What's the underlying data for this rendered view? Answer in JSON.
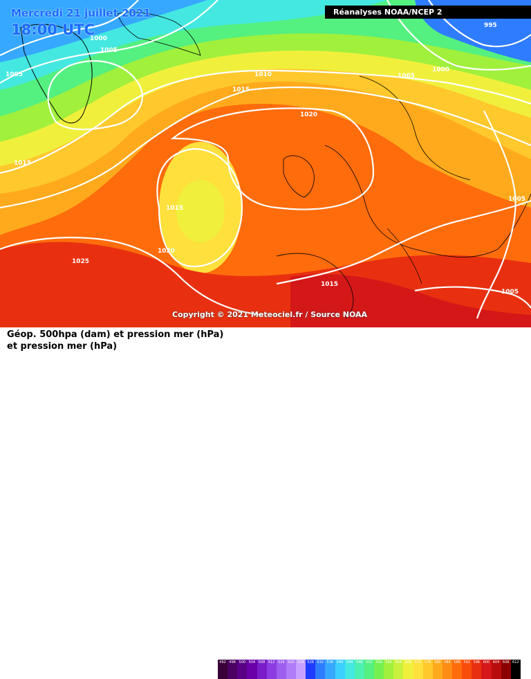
{
  "header": {
    "date": "Mercredi 21 juillet 2021",
    "time": "18:00 UTC",
    "source": "Réanalyses NOAA/NCEP 2"
  },
  "copyright": "Copyright © 2021 Meteociel.fr / Source NOAA",
  "footer": {
    "line1": "Géop. 500hpa (dam) et pression mer (hPa)",
    "line2": "et pression mer (hPa)"
  },
  "isobar_labels": [
    "1000",
    "1005",
    "1005",
    "995",
    "1010",
    "1015",
    "1020",
    "1005",
    "1000",
    "1015",
    "1015",
    "1020",
    "1025",
    "1015",
    "1005",
    "1005"
  ],
  "legend": {
    "unit": "dam",
    "values": [
      "492",
      "496",
      "500",
      "504",
      "508",
      "512",
      "516",
      "520",
      "524",
      "528",
      "532",
      "536",
      "540",
      "544",
      "548",
      "552",
      "556",
      "560",
      "564",
      "568",
      "572",
      "576",
      "580",
      "584",
      "588",
      "592",
      "596",
      "600",
      "604",
      "608",
      "612"
    ],
    "colors": [
      "#3a003a",
      "#4b0062",
      "#5a0085",
      "#6a00a8",
      "#7a1cc8",
      "#8c3ce0",
      "#9e5ef0",
      "#b07cf8",
      "#c8a0ff",
      "#1e3cff",
      "#2e7cff",
      "#36a8ff",
      "#3cd0ff",
      "#44e8e0",
      "#4cf0b0",
      "#54f080",
      "#74f050",
      "#a0f03c",
      "#c8f03c",
      "#f0f03c",
      "#ffe03c",
      "#ffc82c",
      "#ffaa1c",
      "#ff8c14",
      "#ff6c0c",
      "#f84c0c",
      "#e83010",
      "#d41818",
      "#b80c0c",
      "#8c0000",
      "#000000"
    ]
  },
  "colors": {
    "title": "#1c6cff",
    "isobar": "#ffffff",
    "ocean_fill": "#ff8c14"
  }
}
